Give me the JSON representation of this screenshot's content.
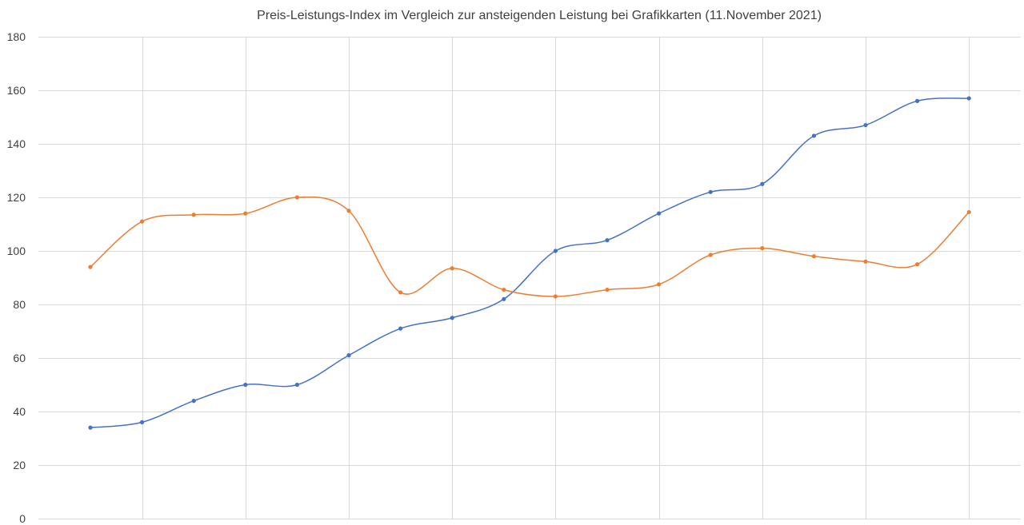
{
  "chart_data": {
    "type": "line",
    "title": "Preis-Leistungs-Index im Vergleich zur ansteigenden Leistung bei Grafikkarten (11.November 2021)",
    "xlabel": "",
    "ylabel": "",
    "ylim": [
      0,
      180
    ],
    "yticks": [
      0,
      20,
      40,
      60,
      80,
      100,
      120,
      140,
      160,
      180
    ],
    "grid": true,
    "smooth": true,
    "x": [
      1,
      2,
      3,
      4,
      5,
      6,
      7,
      8,
      9,
      10,
      11,
      12,
      13,
      14,
      15,
      16,
      17,
      18
    ],
    "series": [
      {
        "color": "#4472c4",
        "values": [
          34,
          36,
          44,
          50,
          50,
          61,
          71,
          75,
          82,
          100,
          104,
          114,
          122,
          125,
          143,
          147,
          156,
          157
        ]
      },
      {
        "color": "#ed7d31",
        "values": [
          94,
          111,
          113.5,
          114,
          120,
          115,
          84.5,
          93.5,
          85.5,
          83,
          85.5,
          87.5,
          98.5,
          101,
          98,
          96,
          95,
          114.5
        ]
      }
    ]
  }
}
